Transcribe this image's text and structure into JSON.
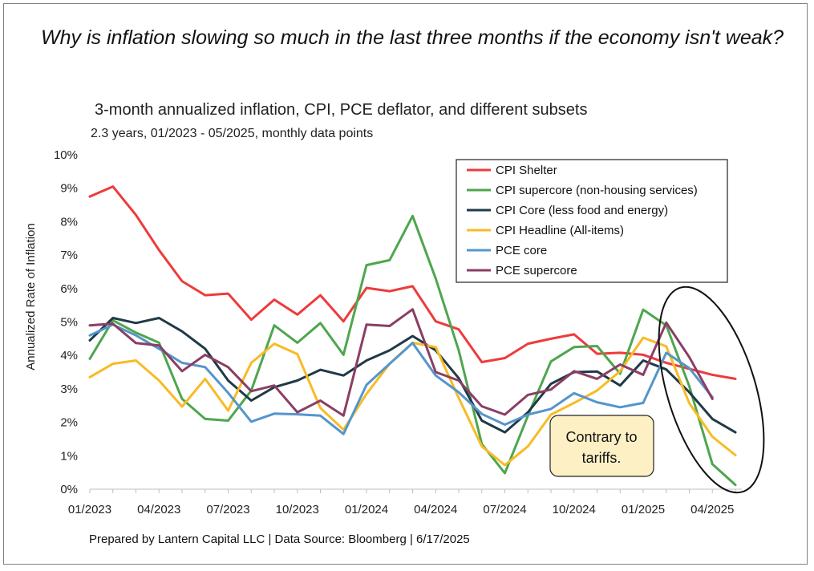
{
  "headline": "Why is inflation slowing so much in the last three months if the economy isn't weak?",
  "footer": "Prepared by Lantern Capital LLC | Data Source: Bloomberg | 6/17/2025",
  "callout": {
    "text_line1": "Contrary to",
    "text_line2": "tariffs."
  },
  "chart_data": {
    "type": "line",
    "title": "3-month annualized inflation, CPI, PCE deflator, and different subsets",
    "subtitle": "2.3 years, 01/2023 - 05/2025, monthly data points",
    "ylabel": "Annualized Rate of Inflation",
    "ylim": [
      0,
      10
    ],
    "yticks": [
      "0%",
      "1%",
      "2%",
      "3%",
      "4%",
      "5%",
      "6%",
      "7%",
      "8%",
      "9%",
      "10%"
    ],
    "xtick_labels": [
      "01/2023",
      "04/2023",
      "07/2023",
      "10/2023",
      "01/2024",
      "04/2024",
      "07/2024",
      "10/2024",
      "01/2025",
      "04/2025"
    ],
    "x": [
      "01/2023",
      "02/2023",
      "03/2023",
      "04/2023",
      "05/2023",
      "06/2023",
      "07/2023",
      "08/2023",
      "09/2023",
      "10/2023",
      "11/2023",
      "12/2023",
      "01/2024",
      "02/2024",
      "03/2024",
      "04/2024",
      "05/2024",
      "06/2024",
      "07/2024",
      "08/2024",
      "09/2024",
      "10/2024",
      "11/2024",
      "12/2024",
      "01/2025",
      "02/2025",
      "03/2025",
      "04/2025",
      "05/2025"
    ],
    "legend_position": "top-right",
    "series": [
      {
        "name": "CPI Shelter",
        "color": "#ee3b3b",
        "values": [
          8.75,
          9.05,
          8.2,
          7.15,
          6.22,
          5.8,
          5.85,
          5.07,
          5.67,
          5.22,
          5.8,
          5.02,
          6.02,
          5.92,
          6.07,
          5.02,
          4.78,
          3.8,
          3.92,
          4.35,
          4.5,
          4.63,
          4.05,
          4.08,
          4.02,
          3.78,
          3.6,
          3.42,
          3.3
        ]
      },
      {
        "name": "CPI supercore (non-housing services)",
        "color": "#4ea64e",
        "values": [
          3.9,
          5.05,
          4.68,
          4.38,
          2.7,
          2.1,
          2.05,
          2.95,
          4.9,
          4.38,
          4.97,
          4.02,
          6.7,
          6.85,
          8.17,
          6.3,
          4.15,
          1.35,
          0.48,
          2.2,
          3.82,
          4.25,
          4.28,
          3.45,
          5.37,
          4.9,
          3.08,
          0.75,
          0.13
        ]
      },
      {
        "name": "CPI Core (less food and energy)",
        "color": "#1f3a48",
        "values": [
          4.45,
          5.12,
          4.97,
          5.12,
          4.72,
          4.2,
          3.25,
          2.65,
          3.05,
          3.25,
          3.57,
          3.4,
          3.85,
          4.15,
          4.58,
          4.15,
          3.32,
          2.05,
          1.7,
          2.3,
          3.15,
          3.5,
          3.52,
          3.1,
          3.85,
          3.58,
          2.9,
          2.1,
          1.7
        ]
      },
      {
        "name": "CPI Headline (All-items)",
        "color": "#f8bb25",
        "values": [
          3.35,
          3.75,
          3.85,
          3.25,
          2.47,
          3.3,
          2.35,
          3.78,
          4.35,
          4.04,
          2.43,
          1.78,
          2.85,
          3.75,
          4.38,
          4.25,
          2.73,
          1.28,
          0.72,
          1.28,
          2.23,
          2.58,
          2.95,
          3.53,
          4.53,
          4.27,
          2.57,
          1.57,
          1.02
        ]
      },
      {
        "name": "PCE core",
        "color": "#5595cc",
        "values": [
          4.6,
          4.92,
          4.6,
          4.2,
          3.78,
          3.65,
          2.88,
          2.02,
          2.26,
          2.24,
          2.2,
          1.65,
          3.12,
          3.75,
          4.37,
          3.4,
          2.9,
          2.25,
          1.93,
          2.23,
          2.4,
          2.87,
          2.6,
          2.45,
          2.58,
          4.08,
          3.62,
          2.75,
          null
        ]
      },
      {
        "name": "PCE supercore",
        "color": "#8b3e64",
        "values": [
          4.9,
          4.95,
          4.37,
          4.3,
          3.53,
          4.02,
          3.65,
          2.93,
          3.1,
          2.3,
          2.65,
          2.2,
          4.92,
          4.88,
          5.38,
          3.5,
          3.25,
          2.48,
          2.23,
          2.82,
          2.98,
          3.53,
          3.3,
          3.73,
          3.42,
          4.98,
          3.95,
          2.7,
          null
        ]
      }
    ]
  }
}
